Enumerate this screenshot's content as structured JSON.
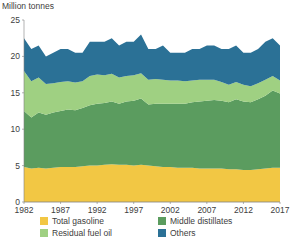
{
  "chart_data": {
    "type": "area",
    "stacked": true,
    "y_label": "Million tonnes",
    "x": [
      1982,
      1983,
      1984,
      1985,
      1986,
      1987,
      1988,
      1989,
      1990,
      1991,
      1992,
      1993,
      1994,
      1995,
      1996,
      1997,
      1998,
      1999,
      2000,
      2001,
      2002,
      2003,
      2004,
      2005,
      2006,
      2007,
      2008,
      2009,
      2010,
      2011,
      2012,
      2013,
      2014,
      2015,
      2016,
      2017
    ],
    "xlim": [
      1982,
      2017
    ],
    "xticks": [
      1982,
      1987,
      1992,
      1997,
      2002,
      2007,
      2012,
      2017
    ],
    "ylim": [
      0,
      25
    ],
    "yticks": [
      0,
      5,
      10,
      15,
      20,
      25
    ],
    "grid": false,
    "legend": "bottom",
    "series": [
      {
        "name": "Total gasoline",
        "color": "#f2c744",
        "values": [
          4.8,
          4.6,
          4.7,
          4.6,
          4.7,
          4.8,
          4.8,
          4.8,
          4.9,
          5.0,
          5.0,
          5.1,
          5.2,
          5.1,
          5.1,
          5.0,
          5.1,
          5.0,
          4.9,
          4.8,
          4.8,
          4.7,
          4.7,
          4.7,
          4.6,
          4.6,
          4.6,
          4.6,
          4.5,
          4.5,
          4.4,
          4.4,
          4.5,
          4.6,
          4.7,
          4.7
        ]
      },
      {
        "name": "Middle distillates",
        "color": "#5b9c5f",
        "values": [
          7.7,
          7.0,
          7.6,
          7.4,
          7.6,
          7.7,
          7.9,
          7.8,
          8.0,
          8.3,
          8.5,
          8.5,
          8.6,
          8.4,
          8.7,
          8.9,
          9.1,
          8.4,
          8.6,
          8.7,
          8.7,
          8.8,
          8.8,
          9.0,
          9.2,
          9.3,
          9.4,
          9.3,
          9.2,
          9.6,
          9.4,
          9.3,
          9.6,
          10.0,
          10.6,
          10.2
        ]
      },
      {
        "name": "Residual fuel oil",
        "color": "#9fd082",
        "values": [
          5.5,
          5.0,
          4.8,
          4.2,
          4.0,
          4.0,
          3.9,
          3.8,
          3.7,
          4.0,
          4.0,
          3.8,
          3.8,
          3.6,
          3.5,
          3.5,
          3.5,
          3.4,
          3.4,
          3.3,
          3.2,
          3.2,
          3.1,
          3.0,
          3.0,
          2.9,
          2.8,
          2.6,
          2.4,
          2.4,
          2.3,
          2.2,
          2.2,
          2.2,
          2.0,
          1.8
        ]
      },
      {
        "name": "Others",
        "color": "#2b7196",
        "values": [
          4.5,
          4.4,
          4.4,
          3.8,
          4.2,
          4.5,
          4.4,
          4.1,
          3.9,
          4.7,
          4.5,
          4.6,
          4.9,
          4.4,
          4.7,
          4.6,
          5.3,
          4.2,
          4.1,
          4.7,
          3.8,
          3.8,
          3.9,
          4.3,
          4.2,
          4.7,
          4.7,
          4.5,
          4.9,
          5.0,
          4.4,
          4.6,
          4.7,
          5.2,
          5.2,
          4.8
        ]
      }
    ]
  }
}
